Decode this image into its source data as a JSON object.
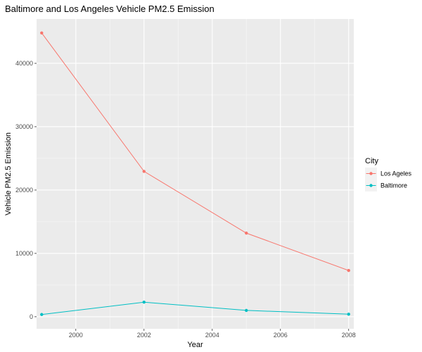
{
  "chart_data": {
    "type": "line",
    "title": "Baltimore and Los Angeles Vehicle PM2.5 Emission",
    "xlabel": "Year",
    "ylabel": "Vehicle PM2.5 Emission",
    "x": [
      1999,
      2002,
      2005,
      2008
    ],
    "xlim": [
      1998.85,
      2008.15
    ],
    "ylim": [
      -1900,
      47000
    ],
    "xticks": [
      2000,
      2002,
      2004,
      2006,
      2008
    ],
    "yticks": [
      0,
      10000,
      20000,
      30000,
      40000
    ],
    "grid": true,
    "legend": {
      "title": "City",
      "position": "right"
    },
    "series": [
      {
        "name": "Los Ageles",
        "color": "#F8766D",
        "values": [
          44800,
          22950,
          13200,
          7300
        ]
      },
      {
        "name": "Baltimore",
        "color": "#00BFC4",
        "values": [
          350,
          2300,
          1000,
          400
        ]
      }
    ]
  }
}
